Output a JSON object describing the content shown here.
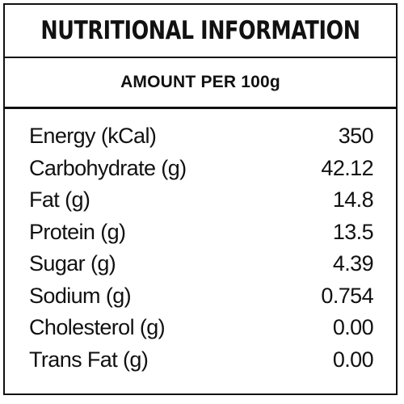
{
  "header": {
    "title": "NUTRITIONAL INFORMATION",
    "subtitle": "AMOUNT PER 100g"
  },
  "nutrients": [
    {
      "label": "Energy (kCal)",
      "value": "350"
    },
    {
      "label": "Carbohydrate (g)",
      "value": "42.12"
    },
    {
      "label": "Fat (g)",
      "value": "14.8"
    },
    {
      "label": "Protein (g)",
      "value": "13.5"
    },
    {
      "label": "Sugar (g)",
      "value": "4.39"
    },
    {
      "label": "Sodium (g)",
      "value": "0.754"
    },
    {
      "label": "Cholesterol (g)",
      "value": "0.00"
    },
    {
      "label": "Trans Fat (g)",
      "value": "0.00"
    }
  ],
  "colors": {
    "ink": "#111111",
    "background": "#ffffff"
  }
}
